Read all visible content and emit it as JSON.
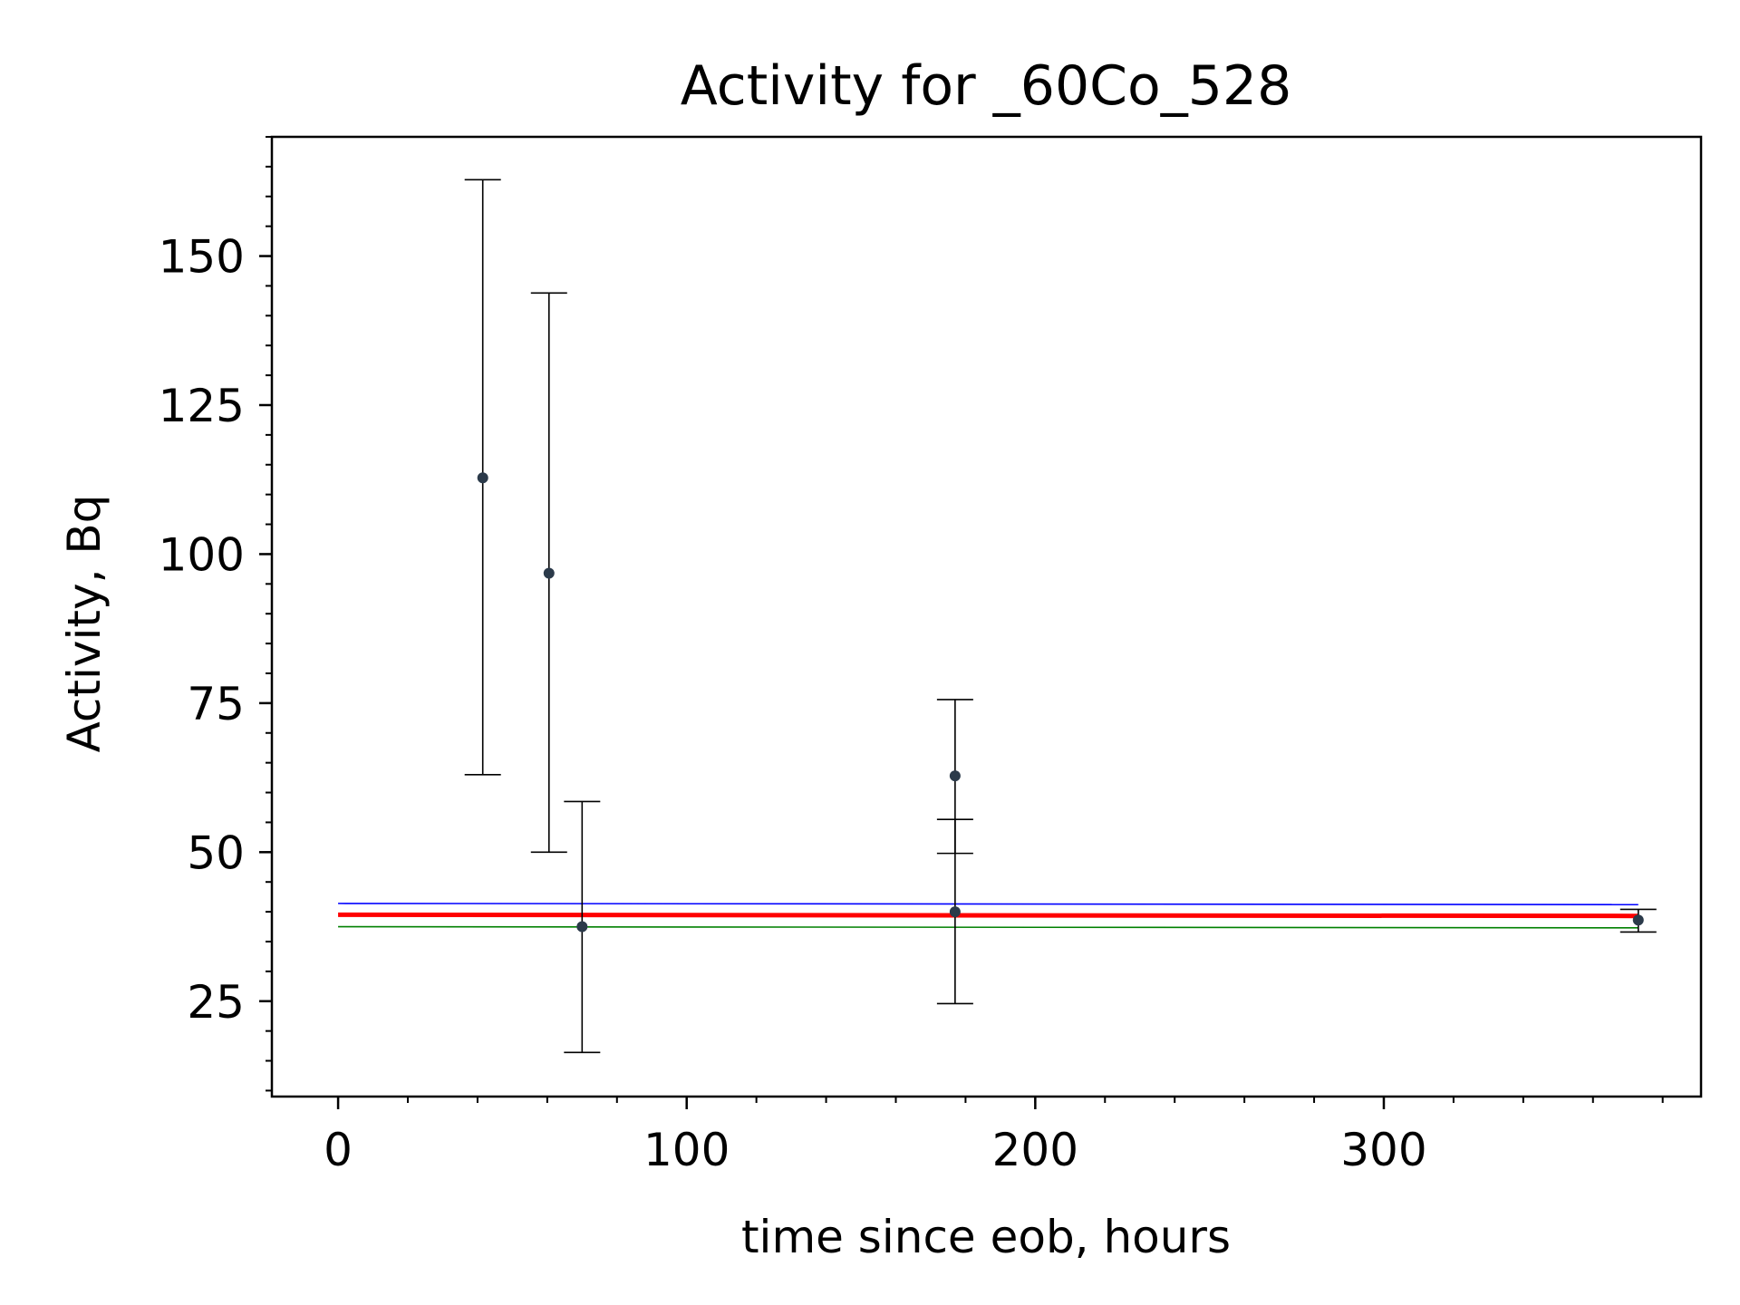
{
  "chart_data": {
    "type": "scatter",
    "title": "Activity for _60Co_528",
    "xlabel": "time since eob, hours",
    "ylabel": "Activity, Bq",
    "xlim": [
      -19,
      391
    ],
    "ylim": [
      9,
      170
    ],
    "x_ticks": [
      0,
      100,
      200,
      300
    ],
    "y_ticks": [
      25,
      50,
      75,
      100,
      125,
      150
    ],
    "x_tick_labels": [
      "0",
      "100",
      "200",
      "300"
    ],
    "y_tick_labels": [
      "25",
      "50",
      "75",
      "100",
      "125",
      "150"
    ],
    "x_minor_step": 20,
    "y_minor_step": 5,
    "grid": false,
    "marker_color": "#2b3a4a",
    "errorbar_color": "#000000",
    "points": [
      {
        "x": 41.5,
        "y": 112.8,
        "yerr_low": 63.0,
        "yerr_high": 162.8
      },
      {
        "x": 60.5,
        "y": 96.8,
        "yerr_low": 50.0,
        "yerr_high": 143.8
      },
      {
        "x": 70.0,
        "y": 37.5,
        "yerr_low": 16.4,
        "yerr_high": 58.5
      },
      {
        "x": 177.0,
        "y": 62.8,
        "yerr_low": 49.8,
        "yerr_high": 75.6
      },
      {
        "x": 177.0,
        "y": 40.0,
        "yerr_low": 24.6,
        "yerr_high": 55.5
      },
      {
        "x": 373.0,
        "y": 38.6,
        "yerr_low": 36.6,
        "yerr_high": 40.4
      }
    ],
    "fit_lines": [
      {
        "color": "#0000ff",
        "width": 1.6,
        "x": [
          0,
          373
        ],
        "y": [
          41.4,
          41.2
        ]
      },
      {
        "color": "#ff0000",
        "width": 5,
        "x": [
          0,
          373
        ],
        "y": [
          39.5,
          39.3
        ]
      },
      {
        "color": "#008000",
        "width": 1.6,
        "x": [
          0,
          373
        ],
        "y": [
          37.5,
          37.3
        ]
      }
    ]
  }
}
